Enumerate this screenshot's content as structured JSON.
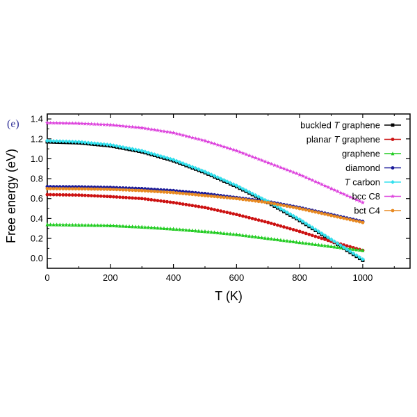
{
  "panel_label": "(e)",
  "chart_data": {
    "type": "line",
    "xlabel": "T (K)",
    "ylabel": "Free energy (eV)",
    "xlim": [
      0,
      1150
    ],
    "ylim": [
      -0.1,
      1.45
    ],
    "xticks": [
      0,
      200,
      400,
      600,
      800,
      1000
    ],
    "yticks": [
      0.0,
      0.2,
      0.4,
      0.6,
      0.8,
      1.0,
      1.2,
      1.4
    ],
    "legend_position": "top-right",
    "grid": false,
    "series": [
      {
        "name_parts": [
          {
            "text": "buckled ",
            "italic": false
          },
          {
            "text": "T",
            "italic": true
          },
          {
            "text": " graphene",
            "italic": false
          }
        ],
        "color": "#000000",
        "marker": "square",
        "x": [
          0,
          100,
          200,
          300,
          400,
          500,
          600,
          700,
          800,
          900,
          950,
          1000
        ],
        "y": [
          1.17,
          1.16,
          1.13,
          1.07,
          0.98,
          0.86,
          0.72,
          0.56,
          0.38,
          0.18,
          0.08,
          -0.02
        ]
      },
      {
        "name_parts": [
          {
            "text": "planar ",
            "italic": false
          },
          {
            "text": "T",
            "italic": true
          },
          {
            "text": " graphene",
            "italic": false
          }
        ],
        "color": "#cc1111",
        "marker": "circle",
        "x": [
          0,
          100,
          200,
          300,
          400,
          500,
          600,
          700,
          800,
          900,
          1000
        ],
        "y": [
          0.64,
          0.635,
          0.62,
          0.6,
          0.56,
          0.51,
          0.44,
          0.36,
          0.27,
          0.17,
          0.08
        ]
      },
      {
        "name_parts": [
          {
            "text": "graphene",
            "italic": false
          }
        ],
        "color": "#22cc22",
        "marker": "triangle",
        "x": [
          0,
          100,
          200,
          300,
          400,
          500,
          600,
          700,
          800,
          900,
          1000
        ],
        "y": [
          0.34,
          0.335,
          0.33,
          0.315,
          0.295,
          0.27,
          0.24,
          0.2,
          0.16,
          0.12,
          0.08
        ]
      },
      {
        "name_parts": [
          {
            "text": "diamond",
            "italic": false
          }
        ],
        "color": "#1a1a99",
        "marker": "circle",
        "x": [
          0,
          100,
          200,
          300,
          400,
          500,
          600,
          700,
          800,
          900,
          1000
        ],
        "y": [
          0.72,
          0.718,
          0.712,
          0.7,
          0.68,
          0.65,
          0.61,
          0.57,
          0.51,
          0.44,
          0.37
        ]
      },
      {
        "name_parts": [
          {
            "text": "T",
            "italic": true
          },
          {
            "text": " carbon",
            "italic": false
          }
        ],
        "color": "#33e0ee",
        "marker": "diamond",
        "x": [
          0,
          100,
          200,
          300,
          400,
          500,
          600,
          700,
          800,
          900,
          950,
          1000
        ],
        "y": [
          1.18,
          1.17,
          1.14,
          1.08,
          0.99,
          0.87,
          0.73,
          0.57,
          0.39,
          0.19,
          0.09,
          -0.01
        ]
      },
      {
        "name_parts": [
          {
            "text": "bcc C8",
            "italic": false
          }
        ],
        "color": "#dd44dd",
        "marker": "star",
        "x": [
          0,
          100,
          200,
          300,
          400,
          500,
          600,
          700,
          800,
          900,
          1000
        ],
        "y": [
          1.36,
          1.355,
          1.34,
          1.31,
          1.26,
          1.18,
          1.08,
          0.96,
          0.84,
          0.7,
          0.56
        ]
      },
      {
        "name_parts": [
          {
            "text": "bct C4",
            "italic": false
          }
        ],
        "color": "#e88a22",
        "marker": "circle",
        "x": [
          0,
          100,
          200,
          300,
          400,
          500,
          600,
          700,
          800,
          900,
          1000
        ],
        "y": [
          0.7,
          0.698,
          0.693,
          0.68,
          0.66,
          0.63,
          0.6,
          0.56,
          0.5,
          0.43,
          0.36
        ]
      }
    ]
  }
}
